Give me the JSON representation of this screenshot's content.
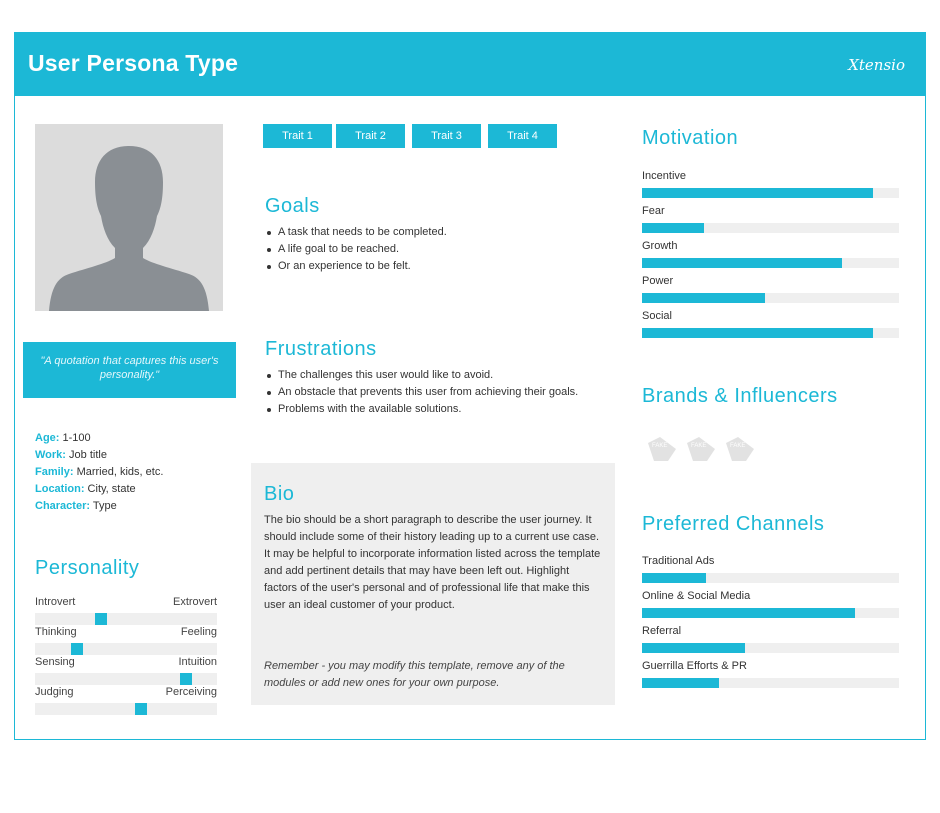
{
  "header": {
    "title": "User Persona Type",
    "logo": "Xtensio"
  },
  "quote": "\"A quotation that captures this user's personality.\"",
  "facts": [
    {
      "key": "Age:",
      "value": " 1-100"
    },
    {
      "key": "Work:",
      "value": " Job title"
    },
    {
      "key": "Family:",
      "value": " Married, kids, etc."
    },
    {
      "key": "Location:",
      "value": " City, state"
    },
    {
      "key": "Character:",
      "value": " Type"
    }
  ],
  "personality": {
    "title": "Personality",
    "scales": [
      {
        "left": "Introvert",
        "right": "Extrovert",
        "value": 0.36
      },
      {
        "left": "Thinking",
        "right": "Feeling",
        "value": 0.23
      },
      {
        "left": "Sensing",
        "right": "Intuition",
        "value": 0.83
      },
      {
        "left": "Judging",
        "right": "Perceiving",
        "value": 0.58
      }
    ]
  },
  "traits": [
    "Trait 1",
    "Trait 2",
    "Trait 3",
    "Trait 4"
  ],
  "goals": {
    "title": "Goals",
    "items": [
      "A task that needs to be completed.",
      "A life goal to be reached.",
      "Or an experience to be felt."
    ]
  },
  "frustrations": {
    "title": "Frustrations",
    "items": [
      "The challenges this user would like to avoid.",
      "An obstacle that prevents this user from achieving their goals.",
      "Problems with the available solutions."
    ]
  },
  "bio": {
    "title": "Bio",
    "text": "The bio should be a short paragraph to describe the user journey. It should include some of their history leading up to a current use case. It may be helpful to incorporate information listed across the template and add pertinent details that may have been left out. Highlight factors of the user's personal and of professional life that make this user an ideal customer of your product.",
    "remember": "Remember - you may modify this template, remove any of the modules or add new ones for your own purpose."
  },
  "motivation": {
    "title": "Motivation",
    "items": [
      {
        "label": "Incentive",
        "value": 0.9
      },
      {
        "label": "Fear",
        "value": 0.24
      },
      {
        "label": "Growth",
        "value": 0.78
      },
      {
        "label": "Power",
        "value": 0.48
      },
      {
        "label": "Social",
        "value": 0.9
      }
    ]
  },
  "brands": {
    "title": "Brands & Influencers",
    "logo_text": "FAKE"
  },
  "channels": {
    "title": "Preferred Channels",
    "items": [
      {
        "label": "Traditional Ads",
        "value": 0.25
      },
      {
        "label": "Online & Social Media",
        "value": 0.83
      },
      {
        "label": "Referral",
        "value": 0.4
      },
      {
        "label": "Guerrilla Efforts & PR",
        "value": 0.3
      }
    ]
  },
  "colors": {
    "accent": "#1cb8d6",
    "track": "#efefef",
    "avatar_bg": "#dcdcdc",
    "silhouette": "#8a8f94"
  }
}
